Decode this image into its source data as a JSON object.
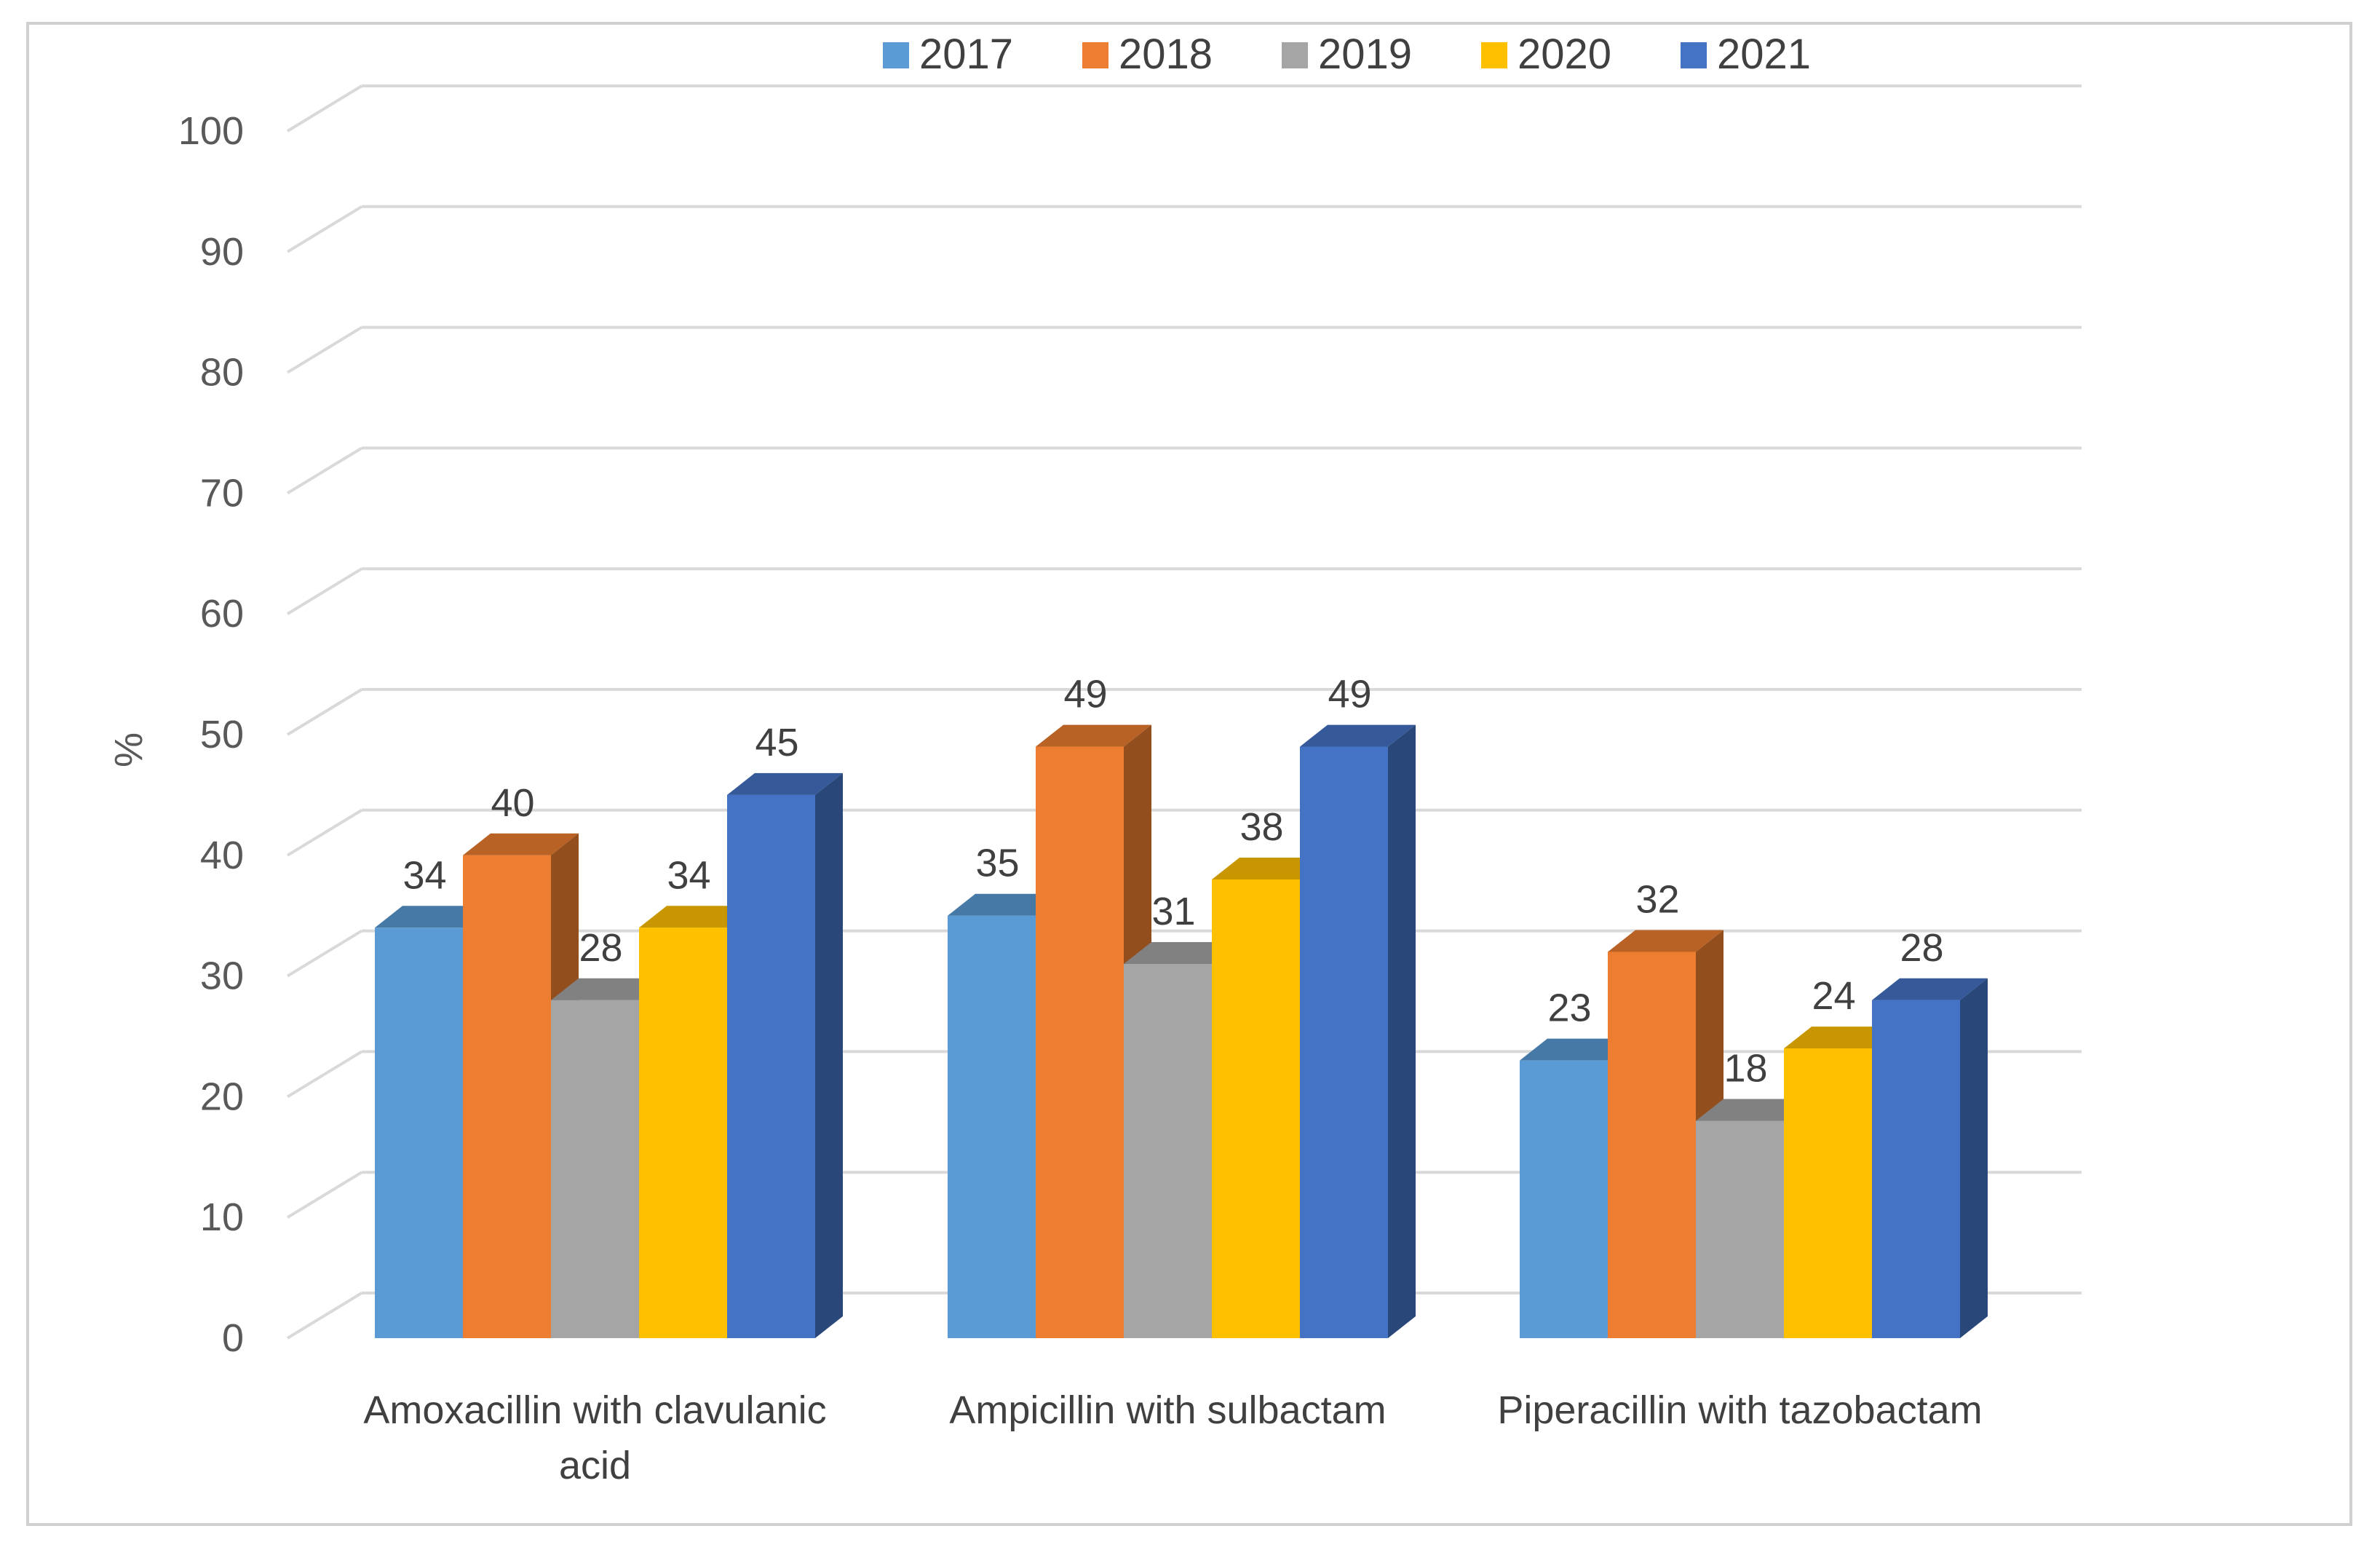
{
  "chart_data": {
    "type": "bar",
    "title": "",
    "xlabel": "",
    "ylabel": "%",
    "ylim": [
      0,
      100
    ],
    "yticks": [
      0,
      10,
      20,
      30,
      40,
      50,
      60,
      70,
      80,
      90,
      100
    ],
    "grid": true,
    "legend_position": "top",
    "categories": [
      [
        "Amoxacillin with clavulanic",
        "acid"
      ],
      [
        "Ampicillin with sulbactam"
      ],
      [
        "Piperacillin with tazobactam"
      ]
    ],
    "series": [
      {
        "name": "2017",
        "color": "#5B9BD5",
        "values": [
          34,
          35,
          23
        ]
      },
      {
        "name": "2018",
        "color": "#ED7D31",
        "values": [
          40,
          49,
          32
        ]
      },
      {
        "name": "2019",
        "color": "#A5A5A5",
        "values": [
          28,
          31,
          18
        ]
      },
      {
        "name": "2020",
        "color": "#FFC000",
        "values": [
          34,
          38,
          24
        ]
      },
      {
        "name": "2021",
        "color": "#4472C4",
        "values": [
          45,
          49,
          28
        ]
      }
    ]
  }
}
